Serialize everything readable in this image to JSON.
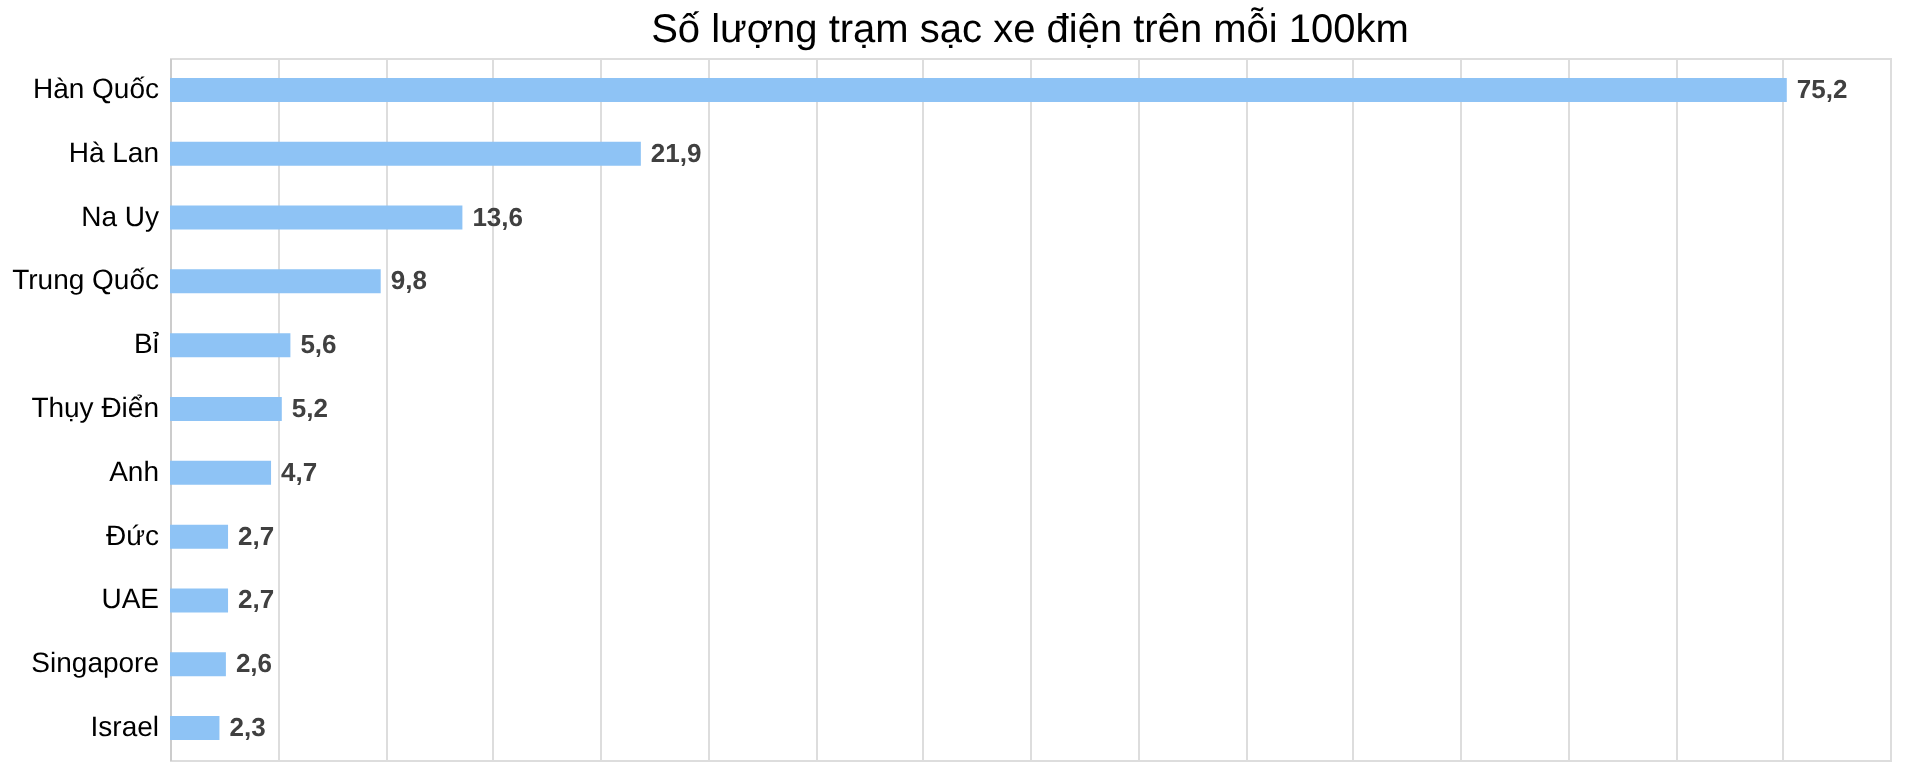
{
  "chart_data": {
    "type": "bar",
    "orientation": "horizontal",
    "title": "Số lượng trạm sạc xe điện trên mỗi 100km",
    "categories": [
      "Hàn Quốc",
      "Hà Lan",
      "Na Uy",
      "Trung Quốc",
      "Bỉ",
      "Thụy Điển",
      "Anh",
      "Đức",
      "UAE",
      "Singapore",
      "Israel"
    ],
    "values": [
      75.2,
      21.9,
      13.6,
      9.8,
      5.6,
      5.2,
      4.7,
      2.7,
      2.7,
      2.6,
      2.3
    ],
    "color": "#8ec3f5",
    "data_labels": true,
    "value_labels": [
      "75,2",
      "21,9",
      "13,6",
      "9,8",
      "5,6",
      "5,2",
      "4,7",
      "2,7",
      "2,7",
      "2,6",
      "2,3"
    ],
    "xlim": [
      0,
      80
    ],
    "xticks": [
      {
        "value": 0,
        "label": null
      },
      {
        "value": 5,
        "label": null
      },
      {
        "value": 10,
        "label": null
      },
      {
        "value": 15,
        "label": null
      },
      {
        "value": 20,
        "label": null
      },
      {
        "value": 25,
        "label": null
      },
      {
        "value": 30,
        "label": null
      },
      {
        "value": 35,
        "label": null
      },
      {
        "value": 40,
        "label": null
      },
      {
        "value": 45,
        "label": null
      },
      {
        "value": 50,
        "label": null
      },
      {
        "value": 55,
        "label": null
      },
      {
        "value": 60,
        "label": null
      },
      {
        "value": 65,
        "label": null
      },
      {
        "value": 70,
        "label": null
      },
      {
        "value": 75,
        "label": null
      },
      {
        "value": 80,
        "label": null
      }
    ],
    "grid": "x",
    "tick_labels": "y"
  }
}
